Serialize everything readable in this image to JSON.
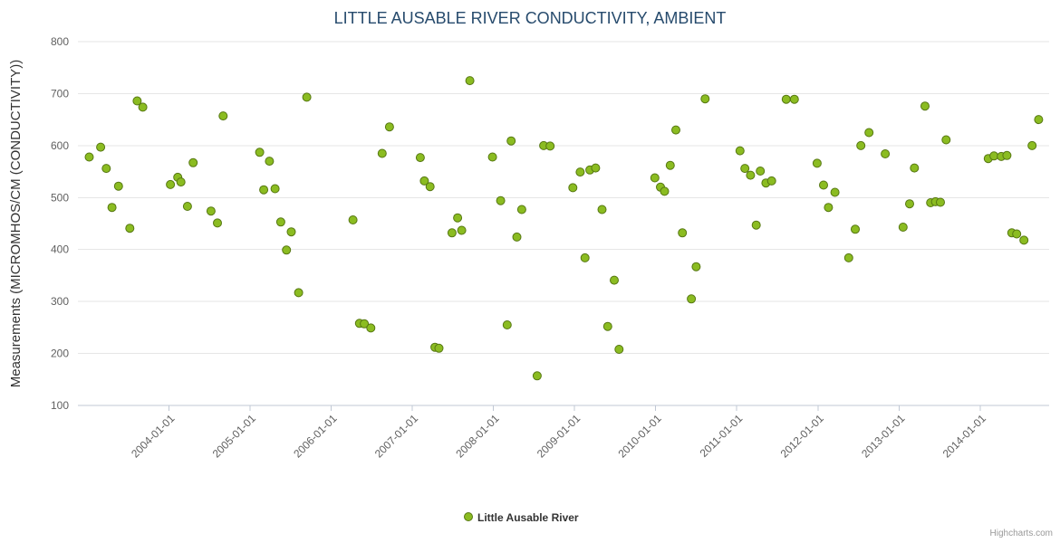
{
  "credits": "Highcharts.com",
  "chart_data": {
    "type": "scatter",
    "title": "LITTLE AUSABLE RIVER CONDUCTIVITY, AMBIENT",
    "xlabel": "",
    "ylabel": "Measurements (MICROMHOS/CM (CONDUCTIVITY))",
    "ylim": [
      100,
      800
    ],
    "ytick_interval": 100,
    "xlim": [
      2002.88,
      2014.85
    ],
    "grid": "horizontal",
    "legend_position": "bottom-center",
    "xticks": [
      {
        "value": 2004,
        "label": "2004-01-01"
      },
      {
        "value": 2005,
        "label": "2005-01-01"
      },
      {
        "value": 2006,
        "label": "2006-01-01"
      },
      {
        "value": 2007,
        "label": "2007-01-01"
      },
      {
        "value": 2008,
        "label": "2008-01-01"
      },
      {
        "value": 2009,
        "label": "2009-01-01"
      },
      {
        "value": 2010,
        "label": "2010-01-01"
      },
      {
        "value": 2011,
        "label": "2011-01-01"
      },
      {
        "value": 2012,
        "label": "2012-01-01"
      },
      {
        "value": 2013,
        "label": "2013-01-01"
      },
      {
        "value": 2014,
        "label": "2014-01-01"
      }
    ],
    "series": [
      {
        "name": "Little Ausable River",
        "color": "#8bbc21",
        "marker_stroke": "#567712",
        "marker_radius": 4.5,
        "points": [
          [
            2003.02,
            578
          ],
          [
            2003.16,
            597
          ],
          [
            2003.23,
            556
          ],
          [
            2003.3,
            481
          ],
          [
            2003.38,
            522
          ],
          [
            2003.52,
            441
          ],
          [
            2003.61,
            686
          ],
          [
            2003.68,
            674
          ],
          [
            2004.02,
            525
          ],
          [
            2004.11,
            539
          ],
          [
            2004.15,
            530
          ],
          [
            2004.23,
            483
          ],
          [
            2004.3,
            567
          ],
          [
            2004.52,
            474
          ],
          [
            2004.6,
            451
          ],
          [
            2004.67,
            657
          ],
          [
            2005.12,
            587
          ],
          [
            2005.17,
            515
          ],
          [
            2005.24,
            570
          ],
          [
            2005.31,
            517
          ],
          [
            2005.38,
            453
          ],
          [
            2005.45,
            399
          ],
          [
            2005.51,
            434
          ],
          [
            2005.6,
            317
          ],
          [
            2005.7,
            693
          ],
          [
            2006.27,
            457
          ],
          [
            2006.35,
            258
          ],
          [
            2006.41,
            257
          ],
          [
            2006.49,
            249
          ],
          [
            2006.63,
            585
          ],
          [
            2006.72,
            636
          ],
          [
            2007.1,
            577
          ],
          [
            2007.15,
            532
          ],
          [
            2007.22,
            521
          ],
          [
            2007.28,
            212
          ],
          [
            2007.33,
            210
          ],
          [
            2007.49,
            432
          ],
          [
            2007.56,
            461
          ],
          [
            2007.61,
            437
          ],
          [
            2007.71,
            725
          ],
          [
            2007.99,
            578
          ],
          [
            2008.09,
            494
          ],
          [
            2008.17,
            255
          ],
          [
            2008.22,
            609
          ],
          [
            2008.29,
            424
          ],
          [
            2008.35,
            477
          ],
          [
            2008.54,
            157
          ],
          [
            2008.62,
            600
          ],
          [
            2008.7,
            599
          ],
          [
            2008.98,
            519
          ],
          [
            2009.07,
            549
          ],
          [
            2009.13,
            384
          ],
          [
            2009.19,
            553
          ],
          [
            2009.26,
            557
          ],
          [
            2009.34,
            477
          ],
          [
            2009.41,
            252
          ],
          [
            2009.49,
            341
          ],
          [
            2009.55,
            208
          ],
          [
            2009.99,
            538
          ],
          [
            2010.06,
            520
          ],
          [
            2010.11,
            512
          ],
          [
            2010.18,
            562
          ],
          [
            2010.25,
            630
          ],
          [
            2010.33,
            432
          ],
          [
            2010.44,
            305
          ],
          [
            2010.5,
            367
          ],
          [
            2010.61,
            690
          ],
          [
            2011.04,
            590
          ],
          [
            2011.1,
            556
          ],
          [
            2011.17,
            543
          ],
          [
            2011.24,
            447
          ],
          [
            2011.29,
            551
          ],
          [
            2011.36,
            528
          ],
          [
            2011.43,
            532
          ],
          [
            2011.61,
            689
          ],
          [
            2011.71,
            689
          ],
          [
            2011.99,
            566
          ],
          [
            2012.07,
            524
          ],
          [
            2012.13,
            481
          ],
          [
            2012.21,
            510
          ],
          [
            2012.38,
            384
          ],
          [
            2012.46,
            439
          ],
          [
            2012.53,
            600
          ],
          [
            2012.63,
            625
          ],
          [
            2012.83,
            584
          ],
          [
            2013.05,
            443
          ],
          [
            2013.13,
            488
          ],
          [
            2013.19,
            557
          ],
          [
            2013.32,
            676
          ],
          [
            2013.39,
            490
          ],
          [
            2013.45,
            492
          ],
          [
            2013.51,
            491
          ],
          [
            2013.58,
            611
          ],
          [
            2014.1,
            575
          ],
          [
            2014.17,
            580
          ],
          [
            2014.26,
            579
          ],
          [
            2014.33,
            581
          ],
          [
            2014.39,
            432
          ],
          [
            2014.45,
            430
          ],
          [
            2014.54,
            418
          ],
          [
            2014.64,
            600
          ],
          [
            2014.72,
            650
          ]
        ]
      }
    ]
  }
}
